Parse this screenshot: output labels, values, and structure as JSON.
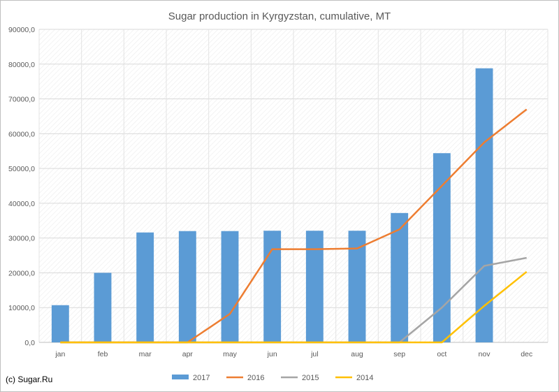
{
  "credit": "(c) Sugar.Ru",
  "chart_data": {
    "type": "bar",
    "title": "Sugar production in Kyrgyzstan, cumulative, MT",
    "categories": [
      "jan",
      "feb",
      "mar",
      "apr",
      "may",
      "jun",
      "jul",
      "aug",
      "sep",
      "oct",
      "nov",
      "dec"
    ],
    "ylim": [
      0,
      90000
    ],
    "yticks": [
      "0,0",
      "10000,0",
      "20000,0",
      "30000,0",
      "40000,0",
      "50000,0",
      "60000,0",
      "70000,0",
      "80000,0",
      "90000,0"
    ],
    "grid": true,
    "legend_position": "bottom",
    "series": [
      {
        "name": "2017",
        "kind": "bar",
        "color": "#5b9bd5",
        "values": [
          10700,
          20000,
          31600,
          32000,
          32000,
          32100,
          32100,
          32100,
          37200,
          54400,
          78800,
          null
        ]
      },
      {
        "name": "2016",
        "kind": "line",
        "color": "#ed7d31",
        "values": [
          0,
          0,
          0,
          0,
          8200,
          26800,
          26800,
          27000,
          32500,
          45000,
          57500,
          67000
        ]
      },
      {
        "name": "2015",
        "kind": "line",
        "color": "#a5a5a5",
        "values": [
          0,
          0,
          0,
          0,
          0,
          0,
          0,
          0,
          0,
          10000,
          22000,
          24300
        ]
      },
      {
        "name": "2014",
        "kind": "line",
        "color": "#ffc000",
        "values": [
          0,
          0,
          0,
          0,
          0,
          0,
          0,
          0,
          0,
          0,
          10500,
          20300
        ]
      }
    ]
  }
}
